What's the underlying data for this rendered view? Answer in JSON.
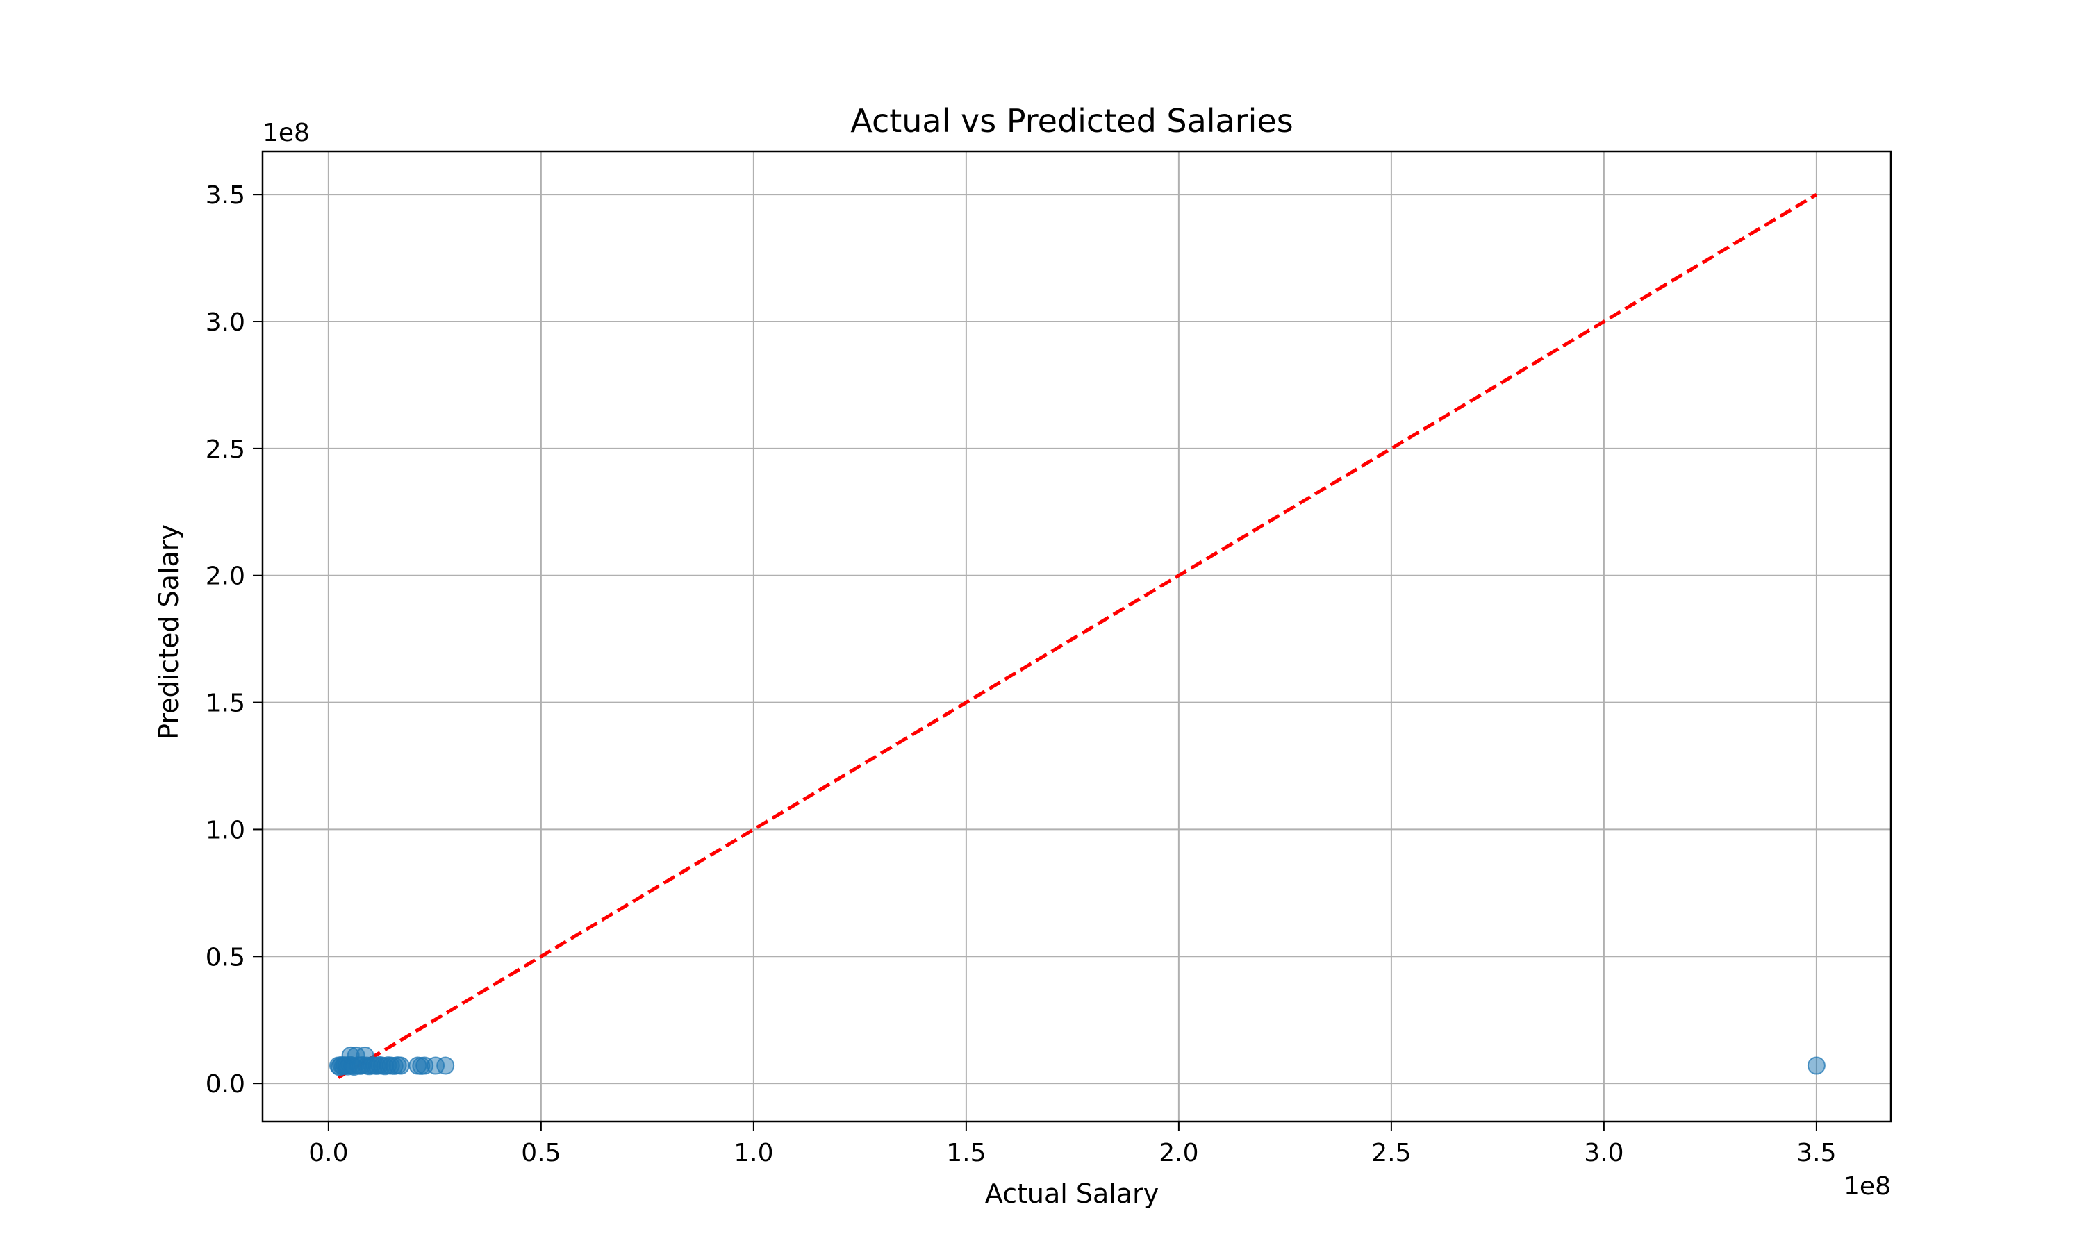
{
  "chart_data": {
    "type": "scatter",
    "title": "Actual vs Predicted Salaries",
    "xlabel": "Actual Salary",
    "ylabel": "Predicted Salary",
    "x_offset_text": "1e8",
    "y_offset_text": "1e8",
    "x_scale_factor": 100000000,
    "y_scale_factor": 100000000,
    "xlim": [
      -15500000,
      367500000
    ],
    "ylim": [
      -15000000,
      367000000
    ],
    "x_ticks": [
      0.0,
      0.5,
      1.0,
      1.5,
      2.0,
      2.5,
      3.0,
      3.5
    ],
    "x_tick_labels": [
      "0.0",
      "0.5",
      "1.0",
      "1.5",
      "2.0",
      "2.5",
      "3.0",
      "3.5"
    ],
    "y_ticks": [
      0.0,
      0.5,
      1.0,
      1.5,
      2.0,
      2.5,
      3.0,
      3.5
    ],
    "y_tick_labels": [
      "0.0",
      "0.5",
      "1.0",
      "1.5",
      "2.0",
      "2.5",
      "3.0",
      "3.5"
    ],
    "grid": true,
    "reference_line": {
      "style": "dashed",
      "color": "#ff0000",
      "points": [
        [
          2300000,
          2300000
        ],
        [
          350000000,
          350000000
        ]
      ]
    },
    "series": [
      {
        "color": "#1f77b4",
        "points": [
          [
            2300000,
            7000000
          ],
          [
            2600000,
            6500000
          ],
          [
            3000000,
            7200000
          ],
          [
            3400000,
            6800000
          ],
          [
            3800000,
            7100000
          ],
          [
            4200000,
            7000000
          ],
          [
            4600000,
            6700000
          ],
          [
            5000000,
            7300000
          ],
          [
            5200000,
            11000000
          ],
          [
            5600000,
            7000000
          ],
          [
            6000000,
            6600000
          ],
          [
            6500000,
            11000000
          ],
          [
            7000000,
            7100000
          ],
          [
            7500000,
            6900000
          ],
          [
            8000000,
            7200000
          ],
          [
            8600000,
            11000000
          ],
          [
            9000000,
            7000000
          ],
          [
            9600000,
            6800000
          ],
          [
            10200000,
            7100000
          ],
          [
            10800000,
            7000000
          ],
          [
            11400000,
            6900000
          ],
          [
            12000000,
            7200000
          ],
          [
            12600000,
            7000000
          ],
          [
            13300000,
            6800000
          ],
          [
            14000000,
            7100000
          ],
          [
            14700000,
            7000000
          ],
          [
            15500000,
            6900000
          ],
          [
            16300000,
            7100000
          ],
          [
            17000000,
            7000000
          ],
          [
            21000000,
            7000000
          ],
          [
            21800000,
            6900000
          ],
          [
            22600000,
            7000000
          ],
          [
            25200000,
            7000000
          ],
          [
            27500000,
            7000000
          ],
          [
            350000000,
            7000000
          ]
        ]
      }
    ]
  }
}
